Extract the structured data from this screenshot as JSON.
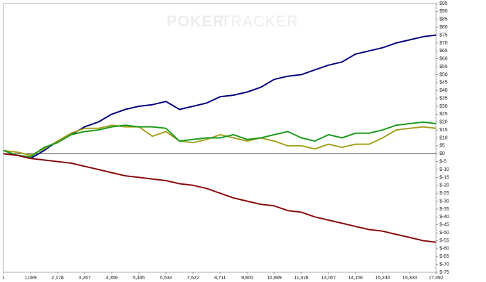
{
  "chart_data": {
    "type": "line",
    "watermark": [
      "POKER",
      "TRACKER"
    ],
    "x": [
      1,
      545,
      1089,
      1633,
      2178,
      2722,
      3267,
      3811,
      4356,
      4900,
      5445,
      5989,
      6534,
      7078,
      7622,
      8166,
      8711,
      9255,
      9800,
      10344,
      10889,
      11433,
      11978,
      12522,
      13067,
      13611,
      14156,
      14700,
      15244,
      15788,
      16333,
      16877,
      17392
    ],
    "series": [
      {
        "color": "#00007f",
        "values": [
          0,
          -1,
          -3,
          2,
          8,
          12,
          17,
          20,
          25,
          28,
          30,
          31,
          33,
          28,
          30,
          32,
          36,
          37,
          39,
          42,
          47,
          49,
          50,
          53,
          56,
          58,
          63,
          65,
          67,
          70,
          72,
          74,
          75
        ]
      },
      {
        "color": "#a59f1e",
        "values": [
          2,
          1,
          -1,
          3,
          8,
          13,
          16,
          16,
          18,
          17,
          17,
          11,
          14,
          8,
          7,
          9,
          12,
          10,
          8,
          10,
          8,
          5,
          5,
          3,
          6,
          4,
          6,
          6,
          10,
          15,
          16,
          17,
          16
        ]
      },
      {
        "color": "#1a9a1a",
        "values": [
          2,
          -1,
          -2,
          4,
          7,
          12,
          14,
          15,
          17,
          18,
          17,
          17,
          16,
          8,
          9,
          10,
          10,
          12,
          9,
          10,
          12,
          14,
          10,
          8,
          12,
          10,
          13,
          13,
          15,
          18,
          19,
          20,
          19
        ]
      },
      {
        "color": "#8b0a0a",
        "values": [
          0,
          -1,
          -3,
          -4,
          -5,
          -6,
          -8,
          -10,
          -12,
          -14,
          -15,
          -16,
          -17,
          -19,
          -20,
          -22,
          -25,
          -28,
          -30,
          -32,
          -33,
          -36,
          -37,
          -40,
          -42,
          -44,
          -46,
          -48,
          -49,
          -51,
          -53,
          -55,
          -56
        ]
      }
    ],
    "xlim": [
      1,
      17392
    ],
    "xticks": [
      1,
      {
        "value": 1089,
        "label": "1,089"
      },
      {
        "value": 2178,
        "label": "2,178"
      },
      {
        "value": 3267,
        "label": "3,267"
      },
      {
        "value": 4356,
        "label": "4,356"
      },
      {
        "value": 5445,
        "label": "5,445"
      },
      {
        "value": 6534,
        "label": "6,534"
      },
      {
        "value": 7622,
        "label": "7,622"
      },
      {
        "value": 8711,
        "label": "8,711"
      },
      {
        "value": 9800,
        "label": "9,800"
      },
      {
        "value": 10889,
        "label": "10,889"
      },
      {
        "value": 11978,
        "label": "11,978"
      },
      {
        "value": 13067,
        "label": "13,067"
      },
      {
        "value": 14156,
        "label": "14,156"
      },
      {
        "value": 15244,
        "label": "15,244"
      },
      {
        "value": 16333,
        "label": "16,333"
      },
      {
        "value": 17392,
        "label": "17,392"
      }
    ],
    "ylim": [
      -75,
      95
    ],
    "yticks": [
      {
        "value": 95,
        "label": "$95"
      },
      {
        "value": 90,
        "label": "$90"
      },
      {
        "value": 85,
        "label": "$85"
      },
      {
        "value": 80,
        "label": "$80"
      },
      {
        "value": 75,
        "label": "$75"
      },
      {
        "value": 70,
        "label": "$70"
      },
      {
        "value": 65,
        "label": "$65"
      },
      {
        "value": 60,
        "label": "$60"
      },
      {
        "value": 55,
        "label": "$55"
      },
      {
        "value": 50,
        "label": "$50"
      },
      {
        "value": 45,
        "label": "$45"
      },
      {
        "value": 40,
        "label": "$40"
      },
      {
        "value": 35,
        "label": "$35"
      },
      {
        "value": 30,
        "label": "$30"
      },
      {
        "value": 25,
        "label": "$25"
      },
      {
        "value": 20,
        "label": "$20"
      },
      {
        "value": 15,
        "label": "$15"
      },
      {
        "value": 10,
        "label": "$10"
      },
      {
        "value": 5,
        "label": "$5"
      },
      {
        "value": 0,
        "label": "$0"
      },
      {
        "value": -5,
        "label": "$-5"
      },
      {
        "value": -10,
        "label": "$-10"
      },
      {
        "value": -15,
        "label": "$-15"
      },
      {
        "value": -20,
        "label": "$-20"
      },
      {
        "value": -25,
        "label": "$-25"
      },
      {
        "value": -30,
        "label": "$-30"
      },
      {
        "value": -35,
        "label": "$-35"
      },
      {
        "value": -40,
        "label": "$-40"
      },
      {
        "value": -45,
        "label": "$-45"
      },
      {
        "value": -50,
        "label": "$-50"
      },
      {
        "value": -55,
        "label": "$-55"
      },
      {
        "value": -60,
        "label": "$-60"
      },
      {
        "value": -65,
        "label": "$-65"
      },
      {
        "value": -70,
        "label": "$-70"
      },
      {
        "value": -75,
        "label": "$-75"
      }
    ]
  }
}
